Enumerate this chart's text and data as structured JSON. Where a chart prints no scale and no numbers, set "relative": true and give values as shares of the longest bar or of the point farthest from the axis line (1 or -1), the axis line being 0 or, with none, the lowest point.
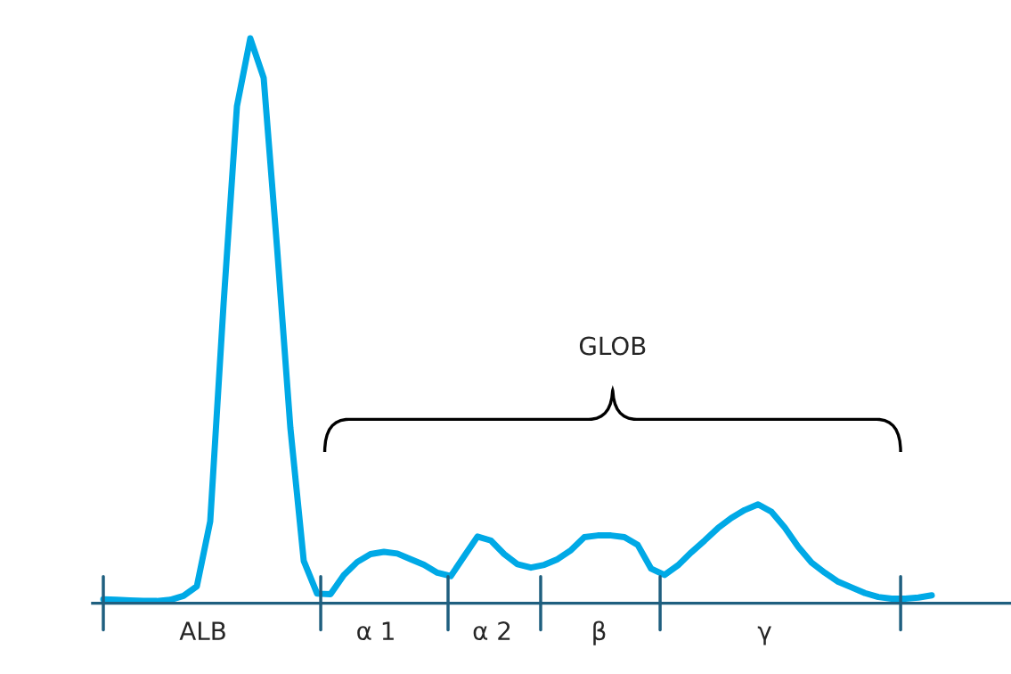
{
  "chart_data": {
    "type": "line",
    "relative": true,
    "categories": [
      null,
      null,
      null,
      null,
      null,
      null,
      null,
      null,
      null,
      null,
      null,
      null,
      null,
      null,
      null,
      null,
      null,
      null,
      null,
      null,
      null,
      null,
      null,
      null,
      null,
      null,
      null,
      null,
      null,
      null,
      null,
      null,
      null,
      null,
      null,
      null,
      null,
      null,
      null,
      null,
      null,
      null,
      null,
      null,
      null,
      null,
      null,
      null,
      null,
      null,
      null,
      null,
      null,
      null,
      null,
      null,
      null,
      null,
      null,
      null,
      null,
      null,
      null
    ],
    "series": [
      {
        "color": "#00a9e6",
        "values": [
          0.007,
          0.006,
          0.005,
          0.004,
          0.004,
          0.006,
          0.013,
          0.03,
          0.145,
          0.53,
          0.88,
          1,
          0.93,
          0.63,
          0.31,
          0.075,
          0.017,
          0.016,
          0.05,
          0.073,
          0.087,
          0.091,
          0.088,
          0.078,
          0.068,
          0.054,
          0.048,
          0.083,
          0.118,
          0.111,
          0.087,
          0.069,
          0.063,
          0.068,
          0.078,
          0.094,
          0.117,
          0.12,
          0.12,
          0.117,
          0.103,
          0.061,
          0.05,
          0.067,
          0.09,
          0.111,
          0.133,
          0.151,
          0.165,
          0.175,
          0.162,
          0.134,
          0.1,
          0.072,
          0.054,
          0.038,
          0.028,
          0.018,
          0.011,
          0.008,
          0.008,
          0.01,
          0.014
        ]
      }
    ],
    "annotations": [
      "GLOB",
      "ALB",
      "α 1",
      "α 2",
      "β",
      "γ"
    ]
  }
}
